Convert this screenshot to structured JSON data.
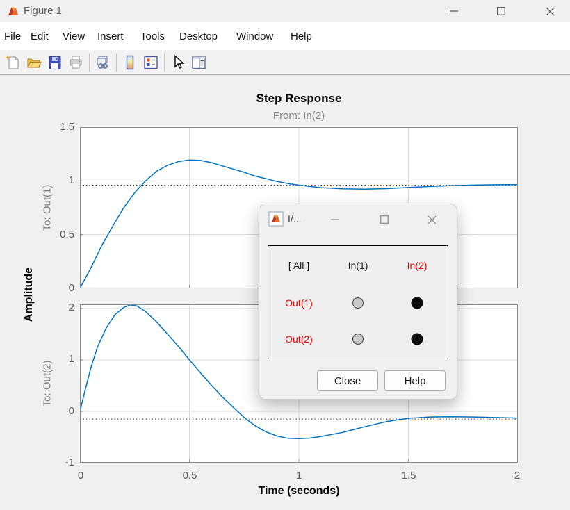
{
  "window": {
    "title": "Figure 1"
  },
  "menu": {
    "items": [
      "File",
      "Edit",
      "View",
      "Insert",
      "Tools",
      "Desktop",
      "Window",
      "Help"
    ]
  },
  "toolbar": {
    "icons": [
      "new-figure",
      "open-file",
      "save-figure",
      "print-figure",
      "link-plot",
      "insert-colorbar",
      "insert-legend",
      "edit-plot",
      "plot-browser"
    ]
  },
  "plot": {
    "title": "Step Response",
    "subtitle": "From: In(2)",
    "xlabel": "Time (seconds)",
    "ylabel": "Amplitude",
    "xticks": [
      "0",
      "0.5",
      "1",
      "1.5",
      "2"
    ],
    "upper": {
      "ylabel": "To: Out(1)",
      "yticks": [
        "1.5",
        "1",
        "0.5",
        "0"
      ]
    },
    "lower": {
      "ylabel": "To: Out(2)",
      "yticks": [
        "2",
        "1",
        "0",
        "-1"
      ]
    }
  },
  "chart_data": [
    {
      "type": "line",
      "title": "Step Response",
      "subtitle": "From: In(2)",
      "xlabel": "Time (seconds)",
      "ylabel": "To: Out(1)",
      "xlim": [
        0,
        2
      ],
      "ylim": [
        0,
        1.5
      ],
      "xticks": [
        0,
        0.5,
        1,
        1.5,
        2
      ],
      "yticks": [
        0,
        0.5,
        1,
        1.5
      ],
      "grid": true,
      "legend": "none",
      "steady_state": 0.96,
      "series": [
        {
          "name": "step response In(2) to Out(1)",
          "color": "#0072BD",
          "points": [
            [
              0,
              0
            ],
            [
              0.05,
              0.19
            ],
            [
              0.1,
              0.4
            ],
            [
              0.15,
              0.58
            ],
            [
              0.2,
              0.75
            ],
            [
              0.25,
              0.89
            ],
            [
              0.3,
              1.0
            ],
            [
              0.35,
              1.09
            ],
            [
              0.4,
              1.145
            ],
            [
              0.45,
              1.18
            ],
            [
              0.5,
              1.195
            ],
            [
              0.55,
              1.19
            ],
            [
              0.6,
              1.17
            ],
            [
              0.65,
              1.14
            ],
            [
              0.7,
              1.11
            ],
            [
              0.75,
              1.08
            ],
            [
              0.8,
              1.045
            ],
            [
              0.85,
              1.02
            ],
            [
              0.9,
              0.995
            ],
            [
              0.95,
              0.975
            ],
            [
              1.0,
              0.96
            ],
            [
              1.1,
              0.937
            ],
            [
              1.2,
              0.926
            ],
            [
              1.3,
              0.923
            ],
            [
              1.4,
              0.928
            ],
            [
              1.5,
              0.938
            ],
            [
              1.6,
              0.948
            ],
            [
              1.7,
              0.956
            ],
            [
              1.8,
              0.961
            ],
            [
              1.9,
              0.964
            ],
            [
              2.0,
              0.965
            ]
          ]
        }
      ]
    },
    {
      "type": "line",
      "title": "Step Response",
      "subtitle": "From: In(2)",
      "xlabel": "Time (seconds)",
      "ylabel": "To: Out(2)",
      "xlim": [
        0,
        2
      ],
      "ylim": [
        -1,
        2.08
      ],
      "xticks": [
        0,
        0.5,
        1,
        1.5,
        2
      ],
      "yticks": [
        -1,
        0,
        1,
        2
      ],
      "grid": true,
      "legend": "none",
      "steady_state": -0.15,
      "series": [
        {
          "name": "step response In(2) to Out(2)",
          "color": "#0072BD",
          "points": [
            [
              0,
              0
            ],
            [
              0.02,
              0.35
            ],
            [
              0.05,
              0.85
            ],
            [
              0.08,
              1.25
            ],
            [
              0.12,
              1.62
            ],
            [
              0.16,
              1.88
            ],
            [
              0.2,
              2.02
            ],
            [
              0.23,
              2.07
            ],
            [
              0.26,
              2.05
            ],
            [
              0.3,
              1.94
            ],
            [
              0.35,
              1.74
            ],
            [
              0.4,
              1.5
            ],
            [
              0.45,
              1.26
            ],
            [
              0.5,
              1.0
            ],
            [
              0.55,
              0.75
            ],
            [
              0.6,
              0.51
            ],
            [
              0.65,
              0.28
            ],
            [
              0.7,
              0.08
            ],
            [
              0.75,
              -0.12
            ],
            [
              0.8,
              -0.28
            ],
            [
              0.85,
              -0.4
            ],
            [
              0.9,
              -0.48
            ],
            [
              0.95,
              -0.525
            ],
            [
              1.0,
              -0.53
            ],
            [
              1.05,
              -0.52
            ],
            [
              1.1,
              -0.49
            ],
            [
              1.2,
              -0.41
            ],
            [
              1.3,
              -0.3
            ],
            [
              1.4,
              -0.2
            ],
            [
              1.5,
              -0.135
            ],
            [
              1.6,
              -0.11
            ],
            [
              1.7,
              -0.105
            ],
            [
              1.8,
              -0.11
            ],
            [
              1.9,
              -0.12
            ],
            [
              2.0,
              -0.13
            ]
          ]
        }
      ]
    }
  ],
  "dialog": {
    "title": "I/...",
    "grid": {
      "header": [
        "[ All ]",
        "In(1)",
        "In(2)"
      ],
      "rows": [
        {
          "label": "Out(1)",
          "cells": [
            "unselected",
            "selected"
          ]
        },
        {
          "label": "Out(2)",
          "cells": [
            "unselected",
            "selected"
          ]
        }
      ]
    },
    "buttons": {
      "close": "Close",
      "help": "Help"
    }
  },
  "colors": {
    "curve_blue": "#0072BD",
    "selected_red": "#e60000",
    "figure_background": "#f0f0f0"
  }
}
